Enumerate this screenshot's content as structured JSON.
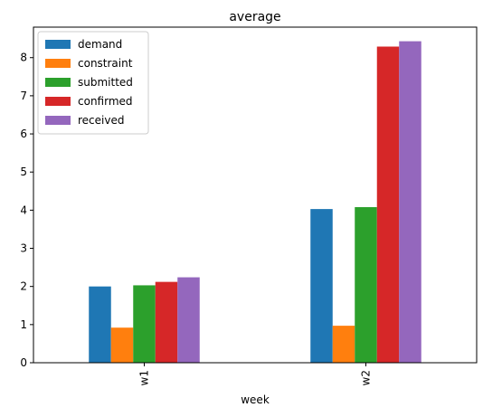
{
  "chart_data": {
    "type": "bar",
    "title": "average",
    "xlabel": "week",
    "ylabel": "",
    "categories": [
      "w1",
      "w2"
    ],
    "ylim": [
      0,
      8.8
    ],
    "yticks": [
      0,
      1,
      2,
      3,
      4,
      5,
      6,
      7,
      8
    ],
    "ytick_labels": [
      "0",
      "1",
      "2",
      "3",
      "4",
      "5",
      "6",
      "7",
      "8"
    ],
    "grid": false,
    "legend_position": "top-left",
    "series": [
      {
        "name": "demand",
        "color": "#1f77b4",
        "values": [
          2.0,
          4.03
        ]
      },
      {
        "name": "constraint",
        "color": "#ff7f0e",
        "values": [
          0.92,
          0.97
        ]
      },
      {
        "name": "submitted",
        "color": "#2ca02c",
        "values": [
          2.03,
          4.08
        ]
      },
      {
        "name": "confirmed",
        "color": "#d62728",
        "values": [
          2.12,
          8.29
        ]
      },
      {
        "name": "received",
        "color": "#9467bd",
        "values": [
          2.24,
          8.43
        ]
      }
    ]
  }
}
